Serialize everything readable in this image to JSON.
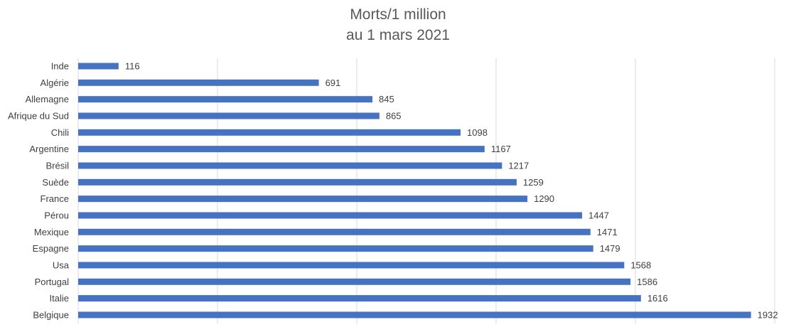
{
  "chart_data": {
    "type": "bar",
    "orientation": "horizontal",
    "title": "Morts/1 million",
    "subtitle": "au 1 mars 2021",
    "xlabel": "",
    "ylabel": "",
    "xlim": [
      0,
      2000
    ],
    "grid": true,
    "legend": "none",
    "bar_color": "#4472C4",
    "categories": [
      "Inde",
      "Algérie",
      "Allemagne",
      "Afrique du Sud",
      "Chili",
      "Argentine",
      "Brésil",
      "Suède",
      "France",
      "Pérou",
      "Mexique",
      "Espagne",
      "Usa",
      "Portugal",
      "Italie",
      "Belgique"
    ],
    "values": [
      116,
      691,
      845,
      865,
      1098,
      1167,
      1217,
      1259,
      1290,
      1447,
      1471,
      1479,
      1568,
      1586,
      1616,
      1932
    ],
    "value_labels": [
      "116",
      "691",
      "845",
      "865",
      "1098",
      "1167",
      "1217",
      "1259",
      "1290",
      "1447",
      "1471",
      "1479",
      "1568",
      "1586",
      "1616",
      "1932"
    ]
  }
}
